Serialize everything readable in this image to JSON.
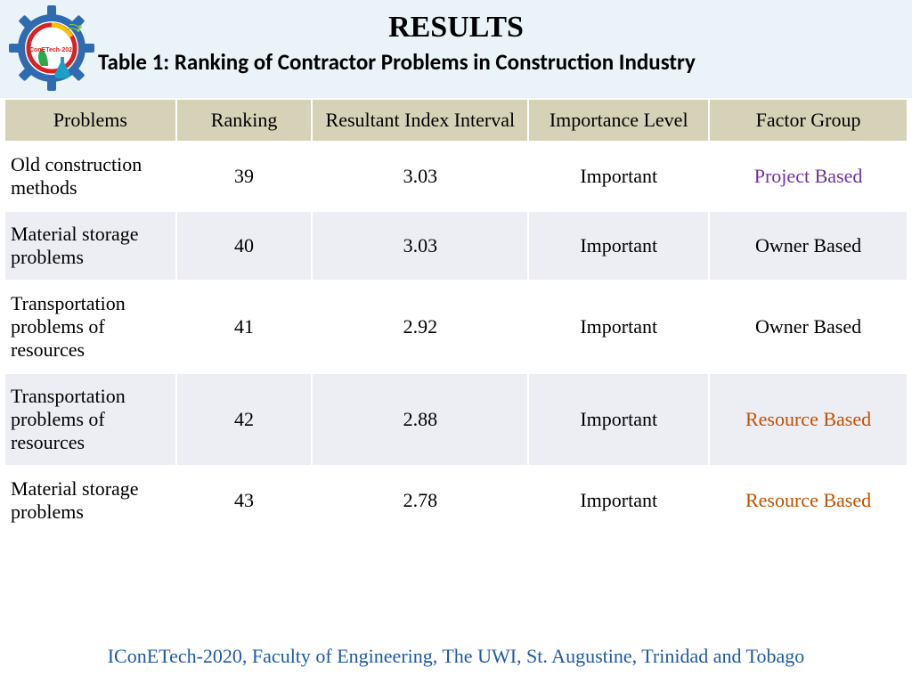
{
  "title": "RESULTS",
  "subtitle": "Table 1: Ranking of Contractor Problems in Construction Industry",
  "footer": "IConETech-2020, Faculty of Engineering, The UWI, St. Augustine, Trinidad and Tobago",
  "footer_color": "#1f5aa6",
  "logo": {
    "gear_color": "#2e6bb0",
    "ring_color": "#d9221f",
    "leaf_color": "#2aa84a",
    "flask_color": "#1aa0c8",
    "band_text": "IConETech-2020"
  },
  "table": {
    "header_bg": "#d6d2b8",
    "row_odd_bg": "#ffffff",
    "row_even_bg": "#eceef4",
    "columns": [
      "Problems",
      "Ranking",
      "Resultant Index Interval",
      "Importance Level",
      "Factor Group"
    ],
    "col_widths_pct": [
      19,
      15,
      24,
      20,
      22
    ],
    "factor_colors": {
      "Project Based": "#7030a0",
      "Owner Based": "#000000",
      "Resource Based": "#c05000"
    },
    "rows": [
      {
        "problem": "Old construction methods",
        "ranking": 39,
        "rii": "3.03",
        "importance": "Important",
        "factor": "Project Based"
      },
      {
        "problem": "Material storage problems",
        "ranking": 40,
        "rii": "3.03",
        "importance": "Important",
        "factor": "Owner Based"
      },
      {
        "problem": "Transportation problems of resources",
        "ranking": 41,
        "rii": "2.92",
        "importance": "Important",
        "factor": "Owner Based"
      },
      {
        "problem": "Transportation problems of resources",
        "ranking": 42,
        "rii": "2.88",
        "importance": "Important",
        "factor": "Resource Based"
      },
      {
        "problem": "Material storage problems",
        "ranking": 43,
        "rii": "2.78",
        "importance": "Important",
        "factor": "Resource Based"
      }
    ]
  }
}
